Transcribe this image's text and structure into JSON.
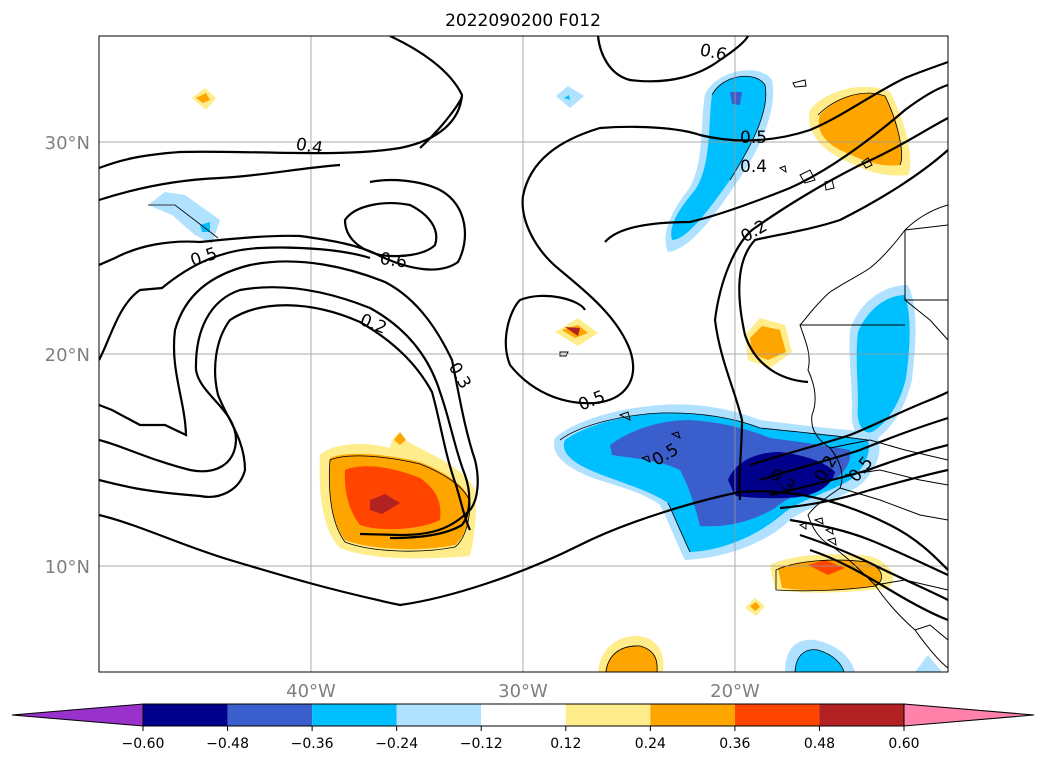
{
  "chart_data": {
    "type": "heatmap",
    "title": "2022090200 F012",
    "lat_ticks": [
      "30°N",
      "20°N",
      "10°N"
    ],
    "lon_ticks": [
      "40°W",
      "30°W",
      "20°W"
    ],
    "map_extent": {
      "lon": [
        -50,
        -10
      ],
      "lat": [
        5,
        35
      ]
    },
    "grid": true,
    "colorbar": {
      "orientation": "horizontal",
      "location": "bottom",
      "extend": "both",
      "levels": [
        -0.6,
        -0.48,
        -0.36,
        -0.24,
        -0.12,
        0.12,
        0.24,
        0.36,
        0.48,
        0.6
      ],
      "tick_labels": [
        "−0.60",
        "−0.48",
        "−0.36",
        "−0.24",
        "−0.12",
        "0.12",
        "0.24",
        "0.36",
        "0.48",
        "0.60"
      ],
      "colors": [
        "#9932cc",
        "#00008b",
        "#3a5fcd",
        "#00bfff",
        "#b0e2ff",
        "#ffffff",
        "#ffec8b",
        "#ffa500",
        "#ff4500",
        "#b22222",
        "#ff82ab"
      ]
    },
    "contour_labels": [
      "0.6",
      "0.4",
      "0.5",
      "0.6",
      "0.2",
      "0.3",
      "0.5",
      "0.5",
      "0.4",
      "0.2",
      "0.5",
      "0.2",
      "0.3",
      "0.5"
    ]
  }
}
